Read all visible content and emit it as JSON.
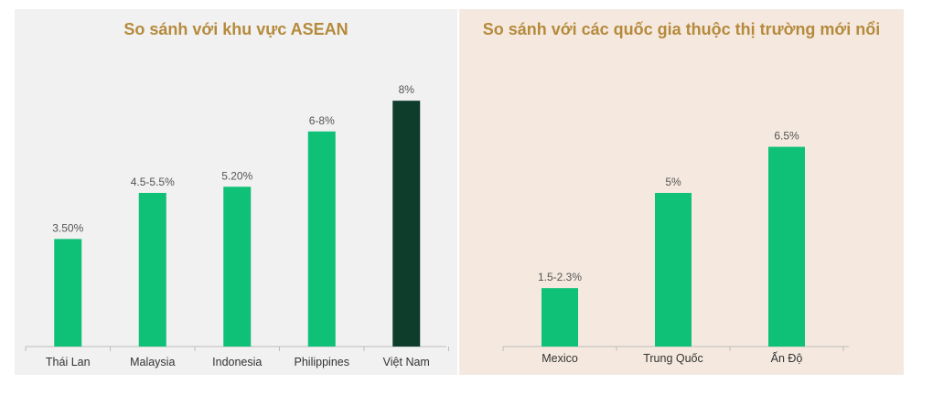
{
  "colors": {
    "bar": "#0fc077",
    "bar_highlight": "#0e3d2b",
    "title": "#b58a3c",
    "left_background": "#f1f1f1",
    "right_background": "#f5e9df",
    "axis": "#bdbdbd"
  },
  "chart_data": [
    {
      "type": "bar",
      "title": "So sánh với khu vực ASEAN",
      "xlabel": "",
      "ylabel": "",
      "grid": false,
      "ylim": [
        0,
        8.6
      ],
      "categories": [
        "Thái Lan",
        "Malaysia",
        "Indonesia",
        "Philippines",
        "Việt Nam"
      ],
      "values": [
        3.5,
        5.0,
        5.2,
        7.0,
        8.0
      ],
      "labels": [
        "3.50%",
        "4.5-5.5%",
        "5.20%",
        "6-8%",
        "8%"
      ],
      "highlight_index": 4
    },
    {
      "type": "bar",
      "title": "So sánh với các quốc gia thuộc thị trường mới nổi",
      "xlabel": "",
      "ylabel": "",
      "grid": false,
      "ylim": [
        0,
        8.6
      ],
      "categories": [
        "Mexico",
        "Trung Quốc",
        "Ấn Độ"
      ],
      "values": [
        1.9,
        5.0,
        6.5
      ],
      "labels": [
        "1.5-2.3%",
        "5%",
        "6.5%"
      ]
    }
  ]
}
